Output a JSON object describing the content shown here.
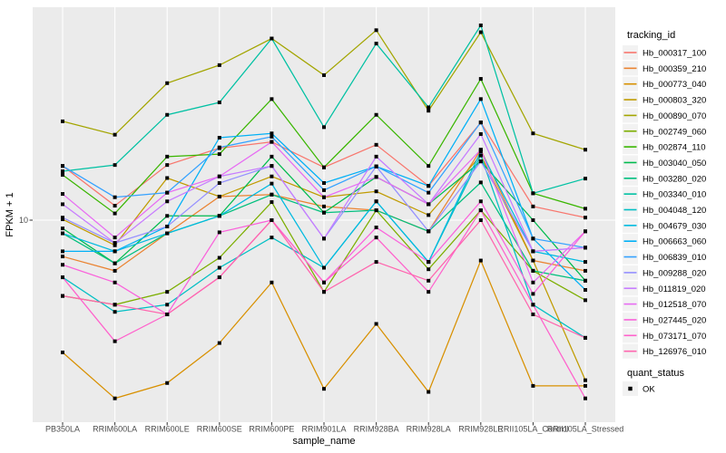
{
  "labels": {
    "ylabel": "FPKM + 1",
    "xlabel": "sample_name",
    "y_tick": "10",
    "legend_color_title": "tracking_id",
    "legend_shape_title": "quant_status",
    "quant_ok": "OK"
  },
  "chart_data": {
    "type": "line",
    "title": "",
    "xlabel": "sample_name",
    "ylabel": "FPKM + 1",
    "y_scale": "log10",
    "ylim": [
      1,
      112
    ],
    "y_ticks": [
      10
    ],
    "y_tick_labels": [
      "10"
    ],
    "grid": true,
    "panel_bg": "#EBEBEB",
    "grid_color": "#FFFFFF",
    "point_shape": "filled-square",
    "point_color": "#000000",
    "legend_position": "right",
    "legend_color_title": "tracking_id",
    "legend_shape_title": "quant_status",
    "legend_shape_items": [
      "OK"
    ],
    "categories": [
      "PB350LA",
      "RRIM600LA",
      "RRIM600LE",
      "RRIM600SE",
      "RRIM600PE",
      "RRIM901LA",
      "RRIM928BA",
      "RRIM928LA",
      "RRIM928LE",
      "RRII105LA_Control",
      "RRII105LA_Stressed"
    ],
    "series": [
      {
        "name": "Hb_000317_100",
        "color": "#F8766D",
        "values": [
          18.6,
          11.8,
          18.8,
          22.8,
          24.5,
          18.3,
          23.7,
          14.8,
          30.6,
          11.7,
          10.3
        ]
      },
      {
        "name": "Hb_000359_210",
        "color": "#EA8331",
        "values": [
          6.6,
          5.6,
          8.6,
          13.1,
          13.4,
          11.7,
          11.2,
          8.8,
          22.4,
          6.3,
          5.6
        ]
      },
      {
        "name": "Hb_000773_040",
        "color": "#D89000",
        "values": [
          2.2,
          1.3,
          1.55,
          2.45,
          4.9,
          1.45,
          3.05,
          1.4,
          6.3,
          1.5,
          1.5
        ]
      },
      {
        "name": "Hb_000803_320",
        "color": "#C09B00",
        "values": [
          10.1,
          7.5,
          16.2,
          13.1,
          16.5,
          13.0,
          13.9,
          10.6,
          21.0,
          6.3,
          1.6
        ]
      },
      {
        "name": "Hb_000890_070",
        "color": "#A3A500",
        "values": [
          31,
          26.6,
          48,
          59,
          80,
          52.6,
          88,
          35,
          86,
          27,
          22.4
        ]
      },
      {
        "name": "Hb_002749_060",
        "color": "#7CAE00",
        "values": [
          4.2,
          3.8,
          4.4,
          6.5,
          12.3,
          4.4,
          11.2,
          5.7,
          11.2,
          5.6,
          4.0
        ]
      },
      {
        "name": "Hb_002874_110",
        "color": "#39B600",
        "values": [
          16.8,
          10.8,
          20.7,
          21.3,
          40,
          18.3,
          33.4,
          18.6,
          50.4,
          13.6,
          11.4
        ]
      },
      {
        "name": "Hb_003040_050",
        "color": "#00BB4E",
        "values": [
          9.1,
          6.1,
          10.5,
          10.5,
          20.7,
          10.9,
          16.4,
          12.0,
          19.6,
          10.0,
          5.0
        ]
      },
      {
        "name": "Hb_003280_020",
        "color": "#00BF7D",
        "values": [
          8.6,
          6.1,
          8.6,
          10.5,
          13.4,
          10.9,
          11.2,
          8.8,
          15.4,
          5.6,
          5.0
        ]
      },
      {
        "name": "Hb_003340_010",
        "color": "#00C1A3",
        "values": [
          17.5,
          18.8,
          33.4,
          38.5,
          80,
          29,
          75.5,
          36.4,
          93,
          13.6,
          16.1
        ]
      },
      {
        "name": "Hb_004048_120",
        "color": "#00BFC4",
        "values": [
          5.2,
          3.5,
          3.8,
          5.8,
          8.2,
          5.8,
          12.4,
          6.2,
          21,
          3.8,
          2.6
        ]
      },
      {
        "name": "Hb_004679_030",
        "color": "#00BAE0",
        "values": [
          8.6,
          7.0,
          8.6,
          10.5,
          15.2,
          5.8,
          12.4,
          6.2,
          22,
          7.0,
          6.2
        ]
      },
      {
        "name": "Hb_006663_060",
        "color": "#00B0F6",
        "values": [
          7.0,
          7.0,
          9.3,
          25.7,
          27,
          15.3,
          18.5,
          14.8,
          40,
          8.1,
          4.5
        ]
      },
      {
        "name": "Hb_006839_010",
        "color": "#35A2FF",
        "values": [
          18.6,
          13.0,
          13.7,
          23,
          26,
          14.1,
          18.5,
          13.7,
          30.6,
          8.1,
          7.3
        ]
      },
      {
        "name": "Hb_009288_020",
        "color": "#9590FF",
        "values": [
          10.3,
          7.7,
          9.3,
          15.3,
          18.6,
          8.1,
          18.5,
          8.8,
          19.6,
          7.0,
          7.3
        ]
      },
      {
        "name": "Hb_011819_020",
        "color": "#C77CFF",
        "values": [
          12.0,
          7.7,
          12.4,
          16.5,
          18.6,
          8.1,
          20.7,
          12.0,
          26.8,
          7.0,
          7.3
        ]
      },
      {
        "name": "Hb_012518_070",
        "color": "#E76BF3",
        "values": [
          13.5,
          8.2,
          13.7,
          16.5,
          24.5,
          13.0,
          16.4,
          12.0,
          22.4,
          4.9,
          8.8
        ]
      },
      {
        "name": "Hb_027445_020",
        "color": "#FA62DB",
        "values": [
          6.0,
          4.9,
          3.4,
          8.7,
          10.0,
          4.9,
          9.2,
          6.2,
          12.4,
          4.3,
          8.8
        ]
      },
      {
        "name": "Hb_073171_070",
        "color": "#FF61CC",
        "values": [
          5.2,
          2.5,
          3.4,
          5.2,
          10.0,
          4.9,
          8.2,
          4.4,
          11.2,
          3.8,
          1.3
        ]
      },
      {
        "name": "Hb_126976_010",
        "color": "#FF65AE",
        "values": [
          4.2,
          3.8,
          3.4,
          5.2,
          10.0,
          4.4,
          6.2,
          5.0,
          10.0,
          3.4,
          2.6
        ]
      }
    ]
  }
}
